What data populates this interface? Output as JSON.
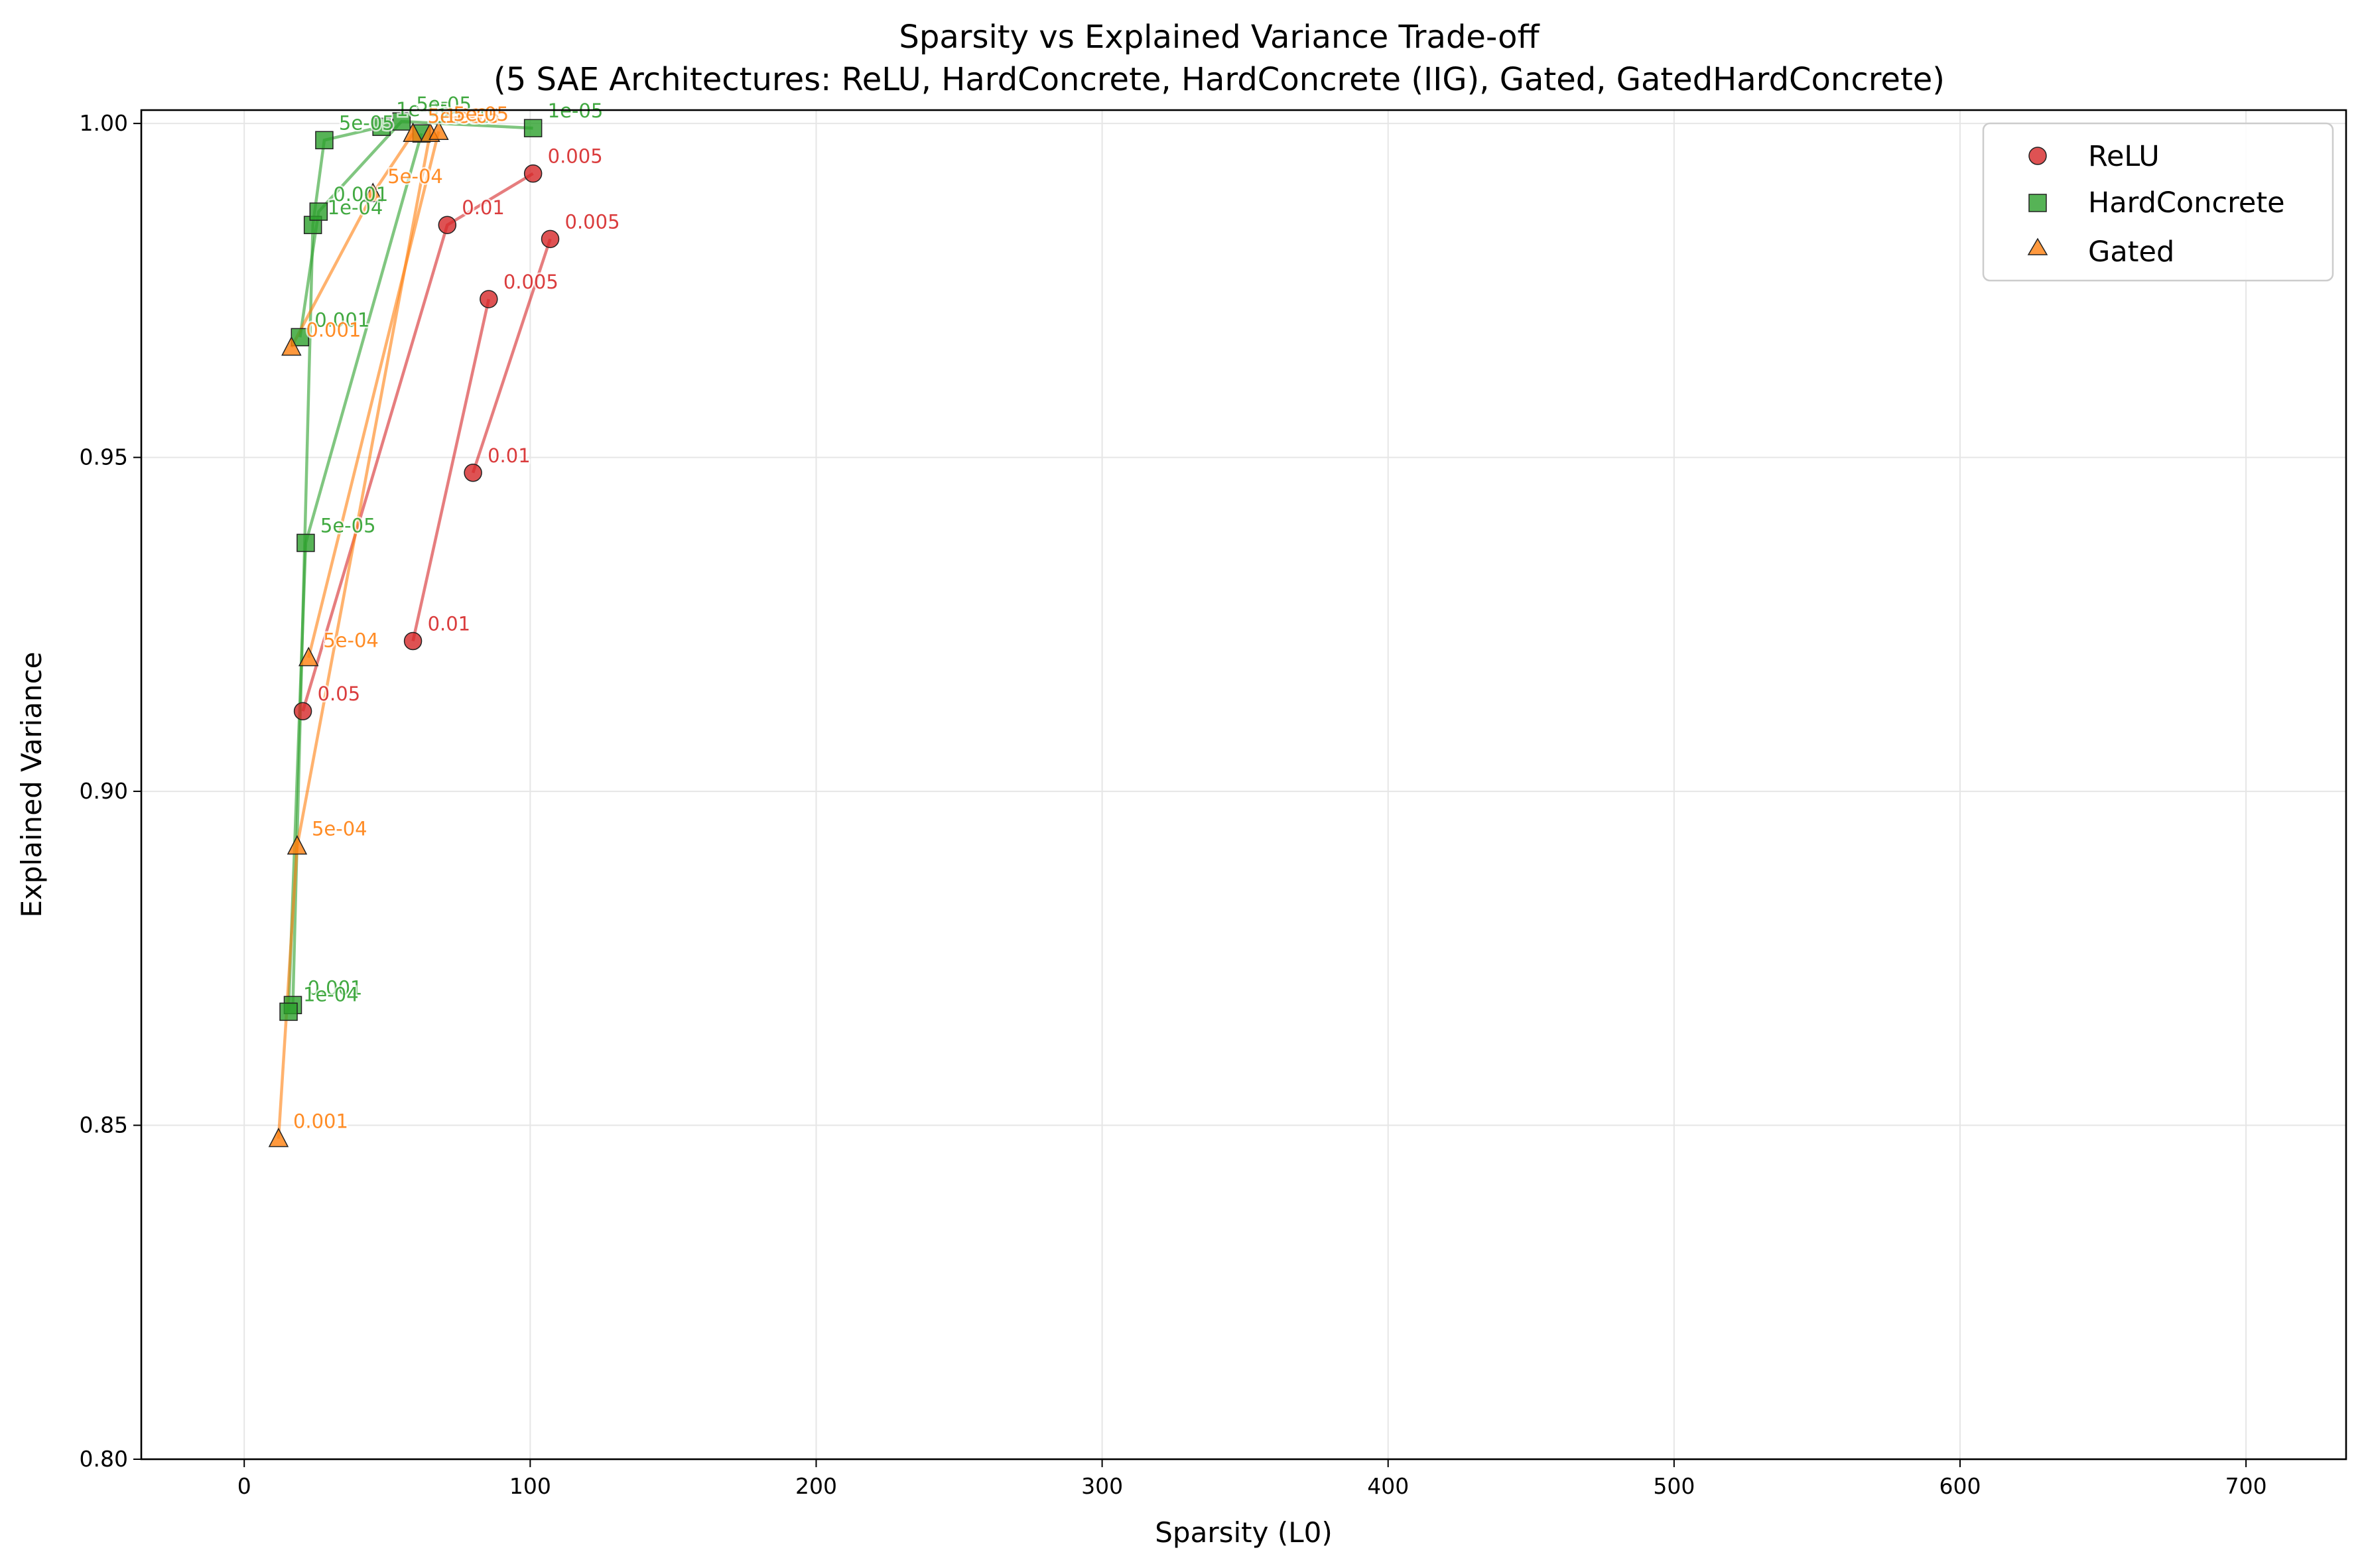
{
  "chart_data": {
    "type": "scatter",
    "title": "Sparsity vs Explained Variance Trade-off",
    "subtitle": "(5 SAE Architectures: ReLU, HardConcrete, HardConcrete (IIG), Gated, GatedHardConcrete)",
    "xlabel": "Sparsity (L0)",
    "ylabel": "Explained Variance",
    "xlim": [
      -36,
      735
    ],
    "ylim": [
      0.8,
      1.002
    ],
    "xticks": [
      "0",
      "100",
      "200",
      "300",
      "400",
      "500",
      "600",
      "700"
    ],
    "yticks": [
      "0.80",
      "0.85",
      "0.90",
      "0.95",
      "1.00"
    ],
    "grid": true,
    "legend_position": "top-right",
    "legend": [
      {
        "name": "ReLU",
        "marker": "circle",
        "color": "#d62728"
      },
      {
        "name": "HardConcrete",
        "marker": "square",
        "color": "#2ca02c"
      },
      {
        "name": "Gated",
        "marker": "triangle",
        "color": "#ff7f0e"
      }
    ],
    "groups": [
      {
        "series": "ReLU",
        "color": "#d62728",
        "marker": "circle",
        "points": [
          {
            "x": 20.5,
            "y": 0.912,
            "label": "0.05"
          },
          {
            "x": 71,
            "y": 0.9848,
            "label": "0.01"
          },
          {
            "x": 101,
            "y": 0.9925,
            "label": "0.005"
          }
        ]
      },
      {
        "series": "ReLU",
        "color": "#d62728",
        "marker": "circle",
        "points": [
          {
            "x": 59,
            "y": 0.9225,
            "label": "0.01"
          },
          {
            "x": 85.5,
            "y": 0.9737,
            "label": "0.005"
          }
        ]
      },
      {
        "series": "ReLU",
        "color": "#d62728",
        "marker": "circle",
        "points": [
          {
            "x": 80,
            "y": 0.9477,
            "label": "0.01"
          },
          {
            "x": 107,
            "y": 0.9827,
            "label": "0.005"
          }
        ]
      },
      {
        "series": "HardConcrete",
        "color": "#2ca02c",
        "marker": "square",
        "points": [
          {
            "x": 17,
            "y": 0.868,
            "label": "0.001"
          },
          {
            "x": 24,
            "y": 0.9848,
            "label": "1e-04"
          },
          {
            "x": 28,
            "y": 0.9975,
            "label": "5e-05"
          },
          {
            "x": 48,
            "y": 0.9995,
            "label": "1e-05"
          }
        ]
      },
      {
        "series": "HardConcrete",
        "color": "#2ca02c",
        "marker": "square",
        "points": [
          {
            "x": 19.5,
            "y": 0.968,
            "label": "0.001"
          },
          {
            "x": 26,
            "y": 0.9868,
            "label": "0.001"
          },
          {
            "x": 55,
            "y": 1.0003,
            "label": "5e-05"
          },
          {
            "x": 101,
            "y": 0.9993,
            "label": "1e-05"
          }
        ]
      },
      {
        "series": "HardConcrete",
        "color": "#2ca02c",
        "marker": "square",
        "points": [
          {
            "x": 15.5,
            "y": 0.867,
            "label": "1e-04"
          },
          {
            "x": 21.5,
            "y": 0.9372,
            "label": "5e-05"
          },
          {
            "x": 62,
            "y": 0.9985,
            "label": "1e-05"
          }
        ]
      },
      {
        "series": "Gated",
        "color": "#ff7f0e",
        "marker": "triangle",
        "points": [
          {
            "x": 16.5,
            "y": 0.9665,
            "label": "0.001"
          },
          {
            "x": 45,
            "y": 0.9895,
            "label": "5e-04"
          },
          {
            "x": 59,
            "y": 0.9985,
            "label": "5e-05"
          }
        ]
      },
      {
        "series": "Gated",
        "color": "#ff7f0e",
        "marker": "triangle",
        "points": [
          {
            "x": 12,
            "y": 0.848,
            "label": "0.001"
          },
          {
            "x": 18.5,
            "y": 0.8918,
            "label": "5e-04"
          },
          {
            "x": 65,
            "y": 0.9985,
            "label": "1e-05"
          }
        ]
      },
      {
        "series": "Gated",
        "color": "#ff7f0e",
        "marker": "triangle",
        "points": [
          {
            "x": 22.5,
            "y": 0.92,
            "label": "5e-04"
          },
          {
            "x": 68,
            "y": 0.9988,
            "label": "5e-05"
          }
        ]
      }
    ]
  }
}
